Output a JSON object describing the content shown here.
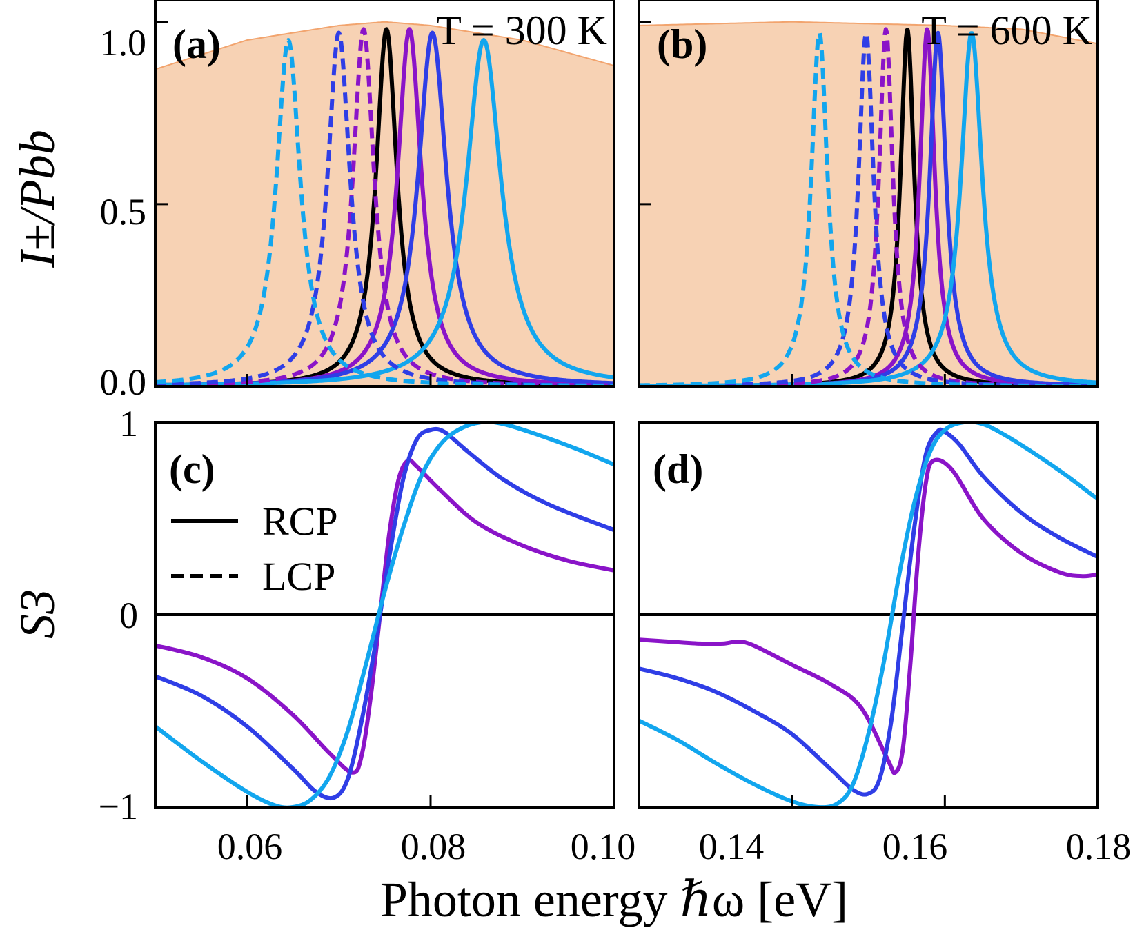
{
  "colors": {
    "black": "#000000",
    "purple": "#8a14c8",
    "blue": "#2f3ee6",
    "lightblue": "#12a6ee",
    "blackbody_fill": "#f7d2b4",
    "blackbody_line": "#f2a46e"
  },
  "figure": {
    "xlabel": "Photon energy ℏω [eV]",
    "legend": [
      {
        "label": "RCP",
        "style": "solid"
      },
      {
        "label": "LCP",
        "style": "dashed"
      }
    ]
  },
  "chart_data": [
    {
      "panel": "(a)",
      "type": "line",
      "title": "T = 300 K",
      "ylabel": "I±/Pbb",
      "xlim": [
        0.05,
        0.1
      ],
      "ylim": [
        0,
        1.0
      ],
      "yticks": [
        "0.0",
        "0.5",
        "1.0"
      ],
      "xticks": [
        0.06,
        0.08,
        0.1
      ],
      "blackbody": {
        "x": [
          0.05,
          0.06,
          0.07,
          0.075,
          0.08,
          0.09,
          0.1
        ],
        "y": [
          0.87,
          0.95,
          0.99,
          1.0,
          0.99,
          0.95,
          0.88
        ]
      },
      "series": [
        {
          "color": "black",
          "style": "solid",
          "center": 0.0752,
          "height": 0.98,
          "width": 0.0014
        },
        {
          "color": "purple",
          "style": "solid",
          "center": 0.0777,
          "height": 0.98,
          "width": 0.0016
        },
        {
          "color": "blue",
          "style": "solid",
          "center": 0.0802,
          "height": 0.97,
          "width": 0.0019
        },
        {
          "color": "lightblue",
          "style": "solid",
          "center": 0.0858,
          "height": 0.95,
          "width": 0.0023
        },
        {
          "color": "purple",
          "style": "dashed",
          "center": 0.0727,
          "height": 0.98,
          "width": 0.0014
        },
        {
          "color": "blue",
          "style": "dashed",
          "center": 0.07,
          "height": 0.97,
          "width": 0.0015
        },
        {
          "color": "lightblue",
          "style": "dashed",
          "center": 0.0645,
          "height": 0.95,
          "width": 0.0016
        }
      ]
    },
    {
      "panel": "(b)",
      "type": "line",
      "title": "T = 600 K",
      "xlim": [
        0.12,
        0.18
      ],
      "ylim": [
        0,
        1.0
      ],
      "yticks": [
        "0.0",
        "0.5",
        "1.0"
      ],
      "xticks": [
        0.14,
        0.16,
        0.18
      ],
      "blackbody": {
        "x": [
          0.12,
          0.14,
          0.16,
          0.17,
          0.18
        ],
        "y": [
          0.99,
          1.0,
          0.99,
          0.98,
          0.94
        ]
      },
      "series": [
        {
          "color": "black",
          "style": "solid",
          "center": 0.1551,
          "height": 0.98,
          "width": 0.0011
        },
        {
          "color": "purple",
          "style": "solid",
          "center": 0.1577,
          "height": 0.98,
          "width": 0.0012
        },
        {
          "color": "blue",
          "style": "solid",
          "center": 0.1591,
          "height": 0.97,
          "width": 0.0013
        },
        {
          "color": "lightblue",
          "style": "solid",
          "center": 0.1635,
          "height": 0.97,
          "width": 0.0017
        },
        {
          "color": "purple",
          "style": "dashed",
          "center": 0.1523,
          "height": 0.98,
          "width": 0.0011
        },
        {
          "color": "blue",
          "style": "dashed",
          "center": 0.1497,
          "height": 0.97,
          "width": 0.0012
        },
        {
          "color": "lightblue",
          "style": "dashed",
          "center": 0.1436,
          "height": 0.97,
          "width": 0.0013
        }
      ]
    },
    {
      "panel": "(c)",
      "type": "line",
      "ylabel": "S3",
      "xlim": [
        0.05,
        0.1
      ],
      "ylim": [
        -1,
        1
      ],
      "yticks": [
        "−1",
        "0",
        "1"
      ],
      "xticks": [
        "0.06",
        "0.08",
        "0.10"
      ],
      "series": [
        {
          "color": "purple",
          "x": [
            0.05,
            0.055,
            0.06,
            0.065,
            0.069,
            0.0715,
            0.0725,
            0.0735,
            0.0745,
            0.0755,
            0.0765,
            0.0775,
            0.0785,
            0.081,
            0.085,
            0.09,
            0.095,
            0.1
          ],
          "y": [
            -0.16,
            -0.22,
            -0.33,
            -0.52,
            -0.72,
            -0.82,
            -0.73,
            -0.42,
            0.0,
            0.42,
            0.7,
            0.8,
            0.77,
            0.65,
            0.48,
            0.36,
            0.28,
            0.23
          ]
        },
        {
          "color": "blue",
          "x": [
            0.05,
            0.055,
            0.06,
            0.065,
            0.0675,
            0.0695,
            0.071,
            0.0725,
            0.074,
            0.0755,
            0.077,
            0.0785,
            0.08,
            0.0815,
            0.084,
            0.088,
            0.093,
            0.1
          ],
          "y": [
            -0.32,
            -0.42,
            -0.58,
            -0.8,
            -0.92,
            -0.95,
            -0.85,
            -0.55,
            -0.15,
            0.3,
            0.7,
            0.91,
            0.96,
            0.95,
            0.85,
            0.7,
            0.57,
            0.44
          ]
        },
        {
          "color": "lightblue",
          "x": [
            0.05,
            0.055,
            0.06,
            0.063,
            0.065,
            0.067,
            0.069,
            0.071,
            0.073,
            0.075,
            0.077,
            0.079,
            0.081,
            0.083,
            0.0855,
            0.088,
            0.092,
            0.096,
            0.1
          ],
          "y": [
            -0.58,
            -0.76,
            -0.92,
            -0.99,
            -1.0,
            -0.96,
            -0.84,
            -0.6,
            -0.25,
            0.12,
            0.45,
            0.72,
            0.88,
            0.96,
            1.0,
            0.99,
            0.93,
            0.86,
            0.78
          ]
        }
      ]
    },
    {
      "panel": "(d)",
      "type": "line",
      "xlim": [
        0.12,
        0.18
      ],
      "ylim": [
        -1,
        1
      ],
      "yticks": [
        "−1",
        "0",
        "1"
      ],
      "xticks": [
        "0.14",
        "0.16",
        "0.18"
      ],
      "series": [
        {
          "color": "purple",
          "x": [
            0.12,
            0.124,
            0.128,
            0.131,
            0.133,
            0.135,
            0.14,
            0.145,
            0.149,
            0.1525,
            0.1535,
            0.1545,
            0.1555,
            0.1565,
            0.1575,
            0.1585,
            0.161,
            0.165,
            0.17,
            0.175,
            0.178,
            0.18
          ],
          "y": [
            -0.13,
            -0.14,
            -0.15,
            -0.15,
            -0.14,
            -0.16,
            -0.26,
            -0.36,
            -0.48,
            -0.75,
            -0.82,
            -0.7,
            -0.25,
            0.3,
            0.68,
            0.8,
            0.75,
            0.5,
            0.32,
            0.22,
            0.2,
            0.21
          ]
        },
        {
          "color": "blue",
          "x": [
            0.12,
            0.125,
            0.13,
            0.135,
            0.14,
            0.145,
            0.148,
            0.15,
            0.1515,
            0.153,
            0.1545,
            0.156,
            0.1575,
            0.159,
            0.16,
            0.162,
            0.165,
            0.17,
            0.175,
            0.18
          ],
          "y": [
            -0.28,
            -0.33,
            -0.4,
            -0.5,
            -0.62,
            -0.8,
            -0.91,
            -0.93,
            -0.85,
            -0.55,
            -0.05,
            0.45,
            0.83,
            0.95,
            0.95,
            0.88,
            0.72,
            0.53,
            0.4,
            0.3
          ]
        },
        {
          "color": "lightblue",
          "x": [
            0.12,
            0.125,
            0.13,
            0.135,
            0.14,
            0.1435,
            0.146,
            0.148,
            0.15,
            0.152,
            0.154,
            0.156,
            0.158,
            0.16,
            0.1625,
            0.165,
            0.168,
            0.172,
            0.176,
            0.18
          ],
          "y": [
            -0.55,
            -0.65,
            -0.77,
            -0.88,
            -0.97,
            -1.0,
            -0.98,
            -0.88,
            -0.62,
            -0.25,
            0.2,
            0.58,
            0.84,
            0.96,
            1.0,
            0.99,
            0.93,
            0.83,
            0.72,
            0.6
          ]
        }
      ]
    }
  ]
}
